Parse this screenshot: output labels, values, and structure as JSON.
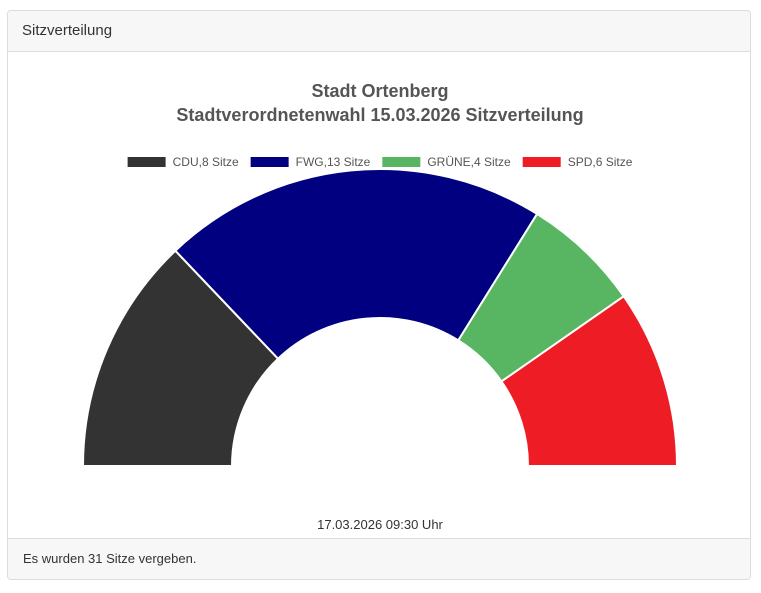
{
  "card": {
    "header_title": "Sitzverteilung",
    "footer_text": "Es wurden 31 Sitze vergeben."
  },
  "chart_data": {
    "type": "pie",
    "subtype": "parliament-semicircle",
    "title": "Stadt Ortenberg",
    "subtitle": "Stadtverordnetenwahl 15.03.2026 Sitzverteilung",
    "legend_position": "top",
    "total_seats": 31,
    "series": [
      {
        "name": "CDU",
        "label": "CDU,8 Sitze",
        "value": 8,
        "color": "#333333"
      },
      {
        "name": "FWG",
        "label": "FWG,13 Sitze",
        "value": 13,
        "color": "#000080"
      },
      {
        "name": "GRÜNE",
        "label": "GRÜNE,4 Sitze",
        "value": 4,
        "color": "#58b562"
      },
      {
        "name": "SPD",
        "label": "SPD,6 Sitze",
        "value": 6,
        "color": "#ee1c25"
      }
    ],
    "timestamp": "17.03.2026 09:30 Uhr"
  }
}
